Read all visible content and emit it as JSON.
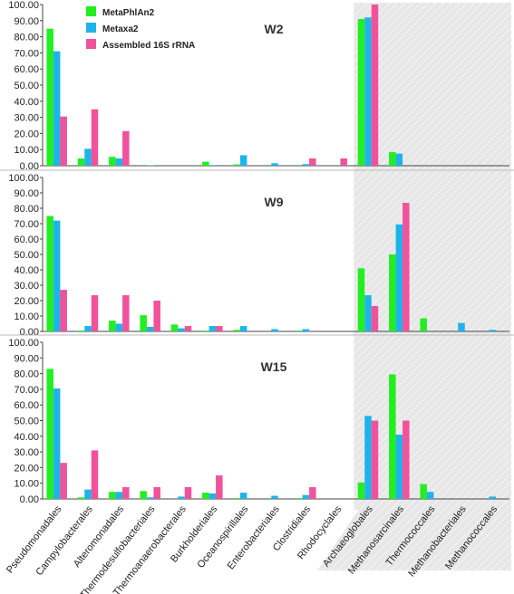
{
  "chart_data": {
    "type": "bar",
    "categories": [
      "Pseudomonadales",
      "Campylobacterales",
      "Alteromonadales",
      "Thermodesulfobacteriales",
      "Thermoanaerobacterales",
      "Burkholderiales",
      "Oceanospirillales",
      "Enterobacteriales",
      "Clostridiales",
      "Rhodocyclales",
      "Archaeoglobales",
      "Methanosarcinales",
      "Thermococcales",
      "Methanobacteriales",
      "Methanococcales"
    ],
    "shaded_categories": [
      "Archaeoglobales",
      "Methanosarcinales",
      "Thermococcales",
      "Methanobacteriales",
      "Methanococcales"
    ],
    "ylim": [
      0,
      100
    ],
    "yticks": [
      "0.00",
      "10.00",
      "20.00",
      "30.00",
      "40.00",
      "50.00",
      "60.00",
      "70.00",
      "80.00",
      "90.00",
      "100.00"
    ],
    "legend": {
      "placement": "top-left"
    },
    "colors": {
      "MetaPhlAn2": "#22ee22",
      "Metaxa2": "#1eb4ea",
      "Assembled 16S rRNA": "#f0529c",
      "shade": "#e7e7e7"
    },
    "panels": [
      {
        "title": "W2",
        "series": [
          {
            "name": "MetaPhlAn2",
            "values": [
              85,
              4.5,
              5.5,
              0,
              0,
              2.5,
              0.8,
              0,
              0,
              0,
              91,
              8.5,
              0,
              0,
              0
            ]
          },
          {
            "name": "Metaxa2",
            "values": [
              71,
              10.5,
              4.5,
              0.3,
              0,
              0.4,
              6.5,
              1.5,
              1,
              0,
              92,
              7.5,
              0,
              0,
              0
            ]
          },
          {
            "name": "Assembled 16S rRNA",
            "values": [
              30.5,
              35,
              21.5,
              0,
              0,
              0,
              0,
              0,
              4.5,
              4.5,
              100,
              0,
              0,
              0,
              0
            ]
          }
        ]
      },
      {
        "title": "W9",
        "series": [
          {
            "name": "MetaPhlAn2",
            "values": [
              75,
              0.5,
              7,
              10.5,
              4.5,
              0.5,
              1,
              0,
              0.5,
              0,
              41,
              50,
              8.5,
              0,
              0
            ]
          },
          {
            "name": "Metaxa2",
            "values": [
              72,
              3.5,
              5,
              3,
              2,
              3.5,
              3.5,
              1.5,
              1.5,
              0,
              23.5,
              69.5,
              0,
              5.5,
              1
            ]
          },
          {
            "name": "Assembled 16S rRNA",
            "values": [
              27,
              23.5,
              23.5,
              20,
              3.5,
              3.5,
              0,
              0,
              0,
              0,
              16.5,
              83.5,
              0,
              0,
              0
            ]
          }
        ]
      },
      {
        "title": "W15",
        "series": [
          {
            "name": "MetaPhlAn2",
            "values": [
              83,
              1,
              4.5,
              5,
              0,
              4,
              0.5,
              0,
              0.5,
              0,
              10.5,
              79.5,
              9.5,
              0,
              0
            ]
          },
          {
            "name": "Metaxa2",
            "values": [
              70.5,
              6,
              4.5,
              1,
              1.5,
              3.5,
              4,
              2,
              2.5,
              0,
              53,
              41,
              4.5,
              0,
              1.5
            ]
          },
          {
            "name": "Assembled 16S rRNA",
            "values": [
              23,
              31,
              7.5,
              7.5,
              7.5,
              15,
              0,
              0,
              7.5,
              0,
              50,
              50,
              0,
              0,
              0
            ]
          }
        ]
      }
    ]
  }
}
